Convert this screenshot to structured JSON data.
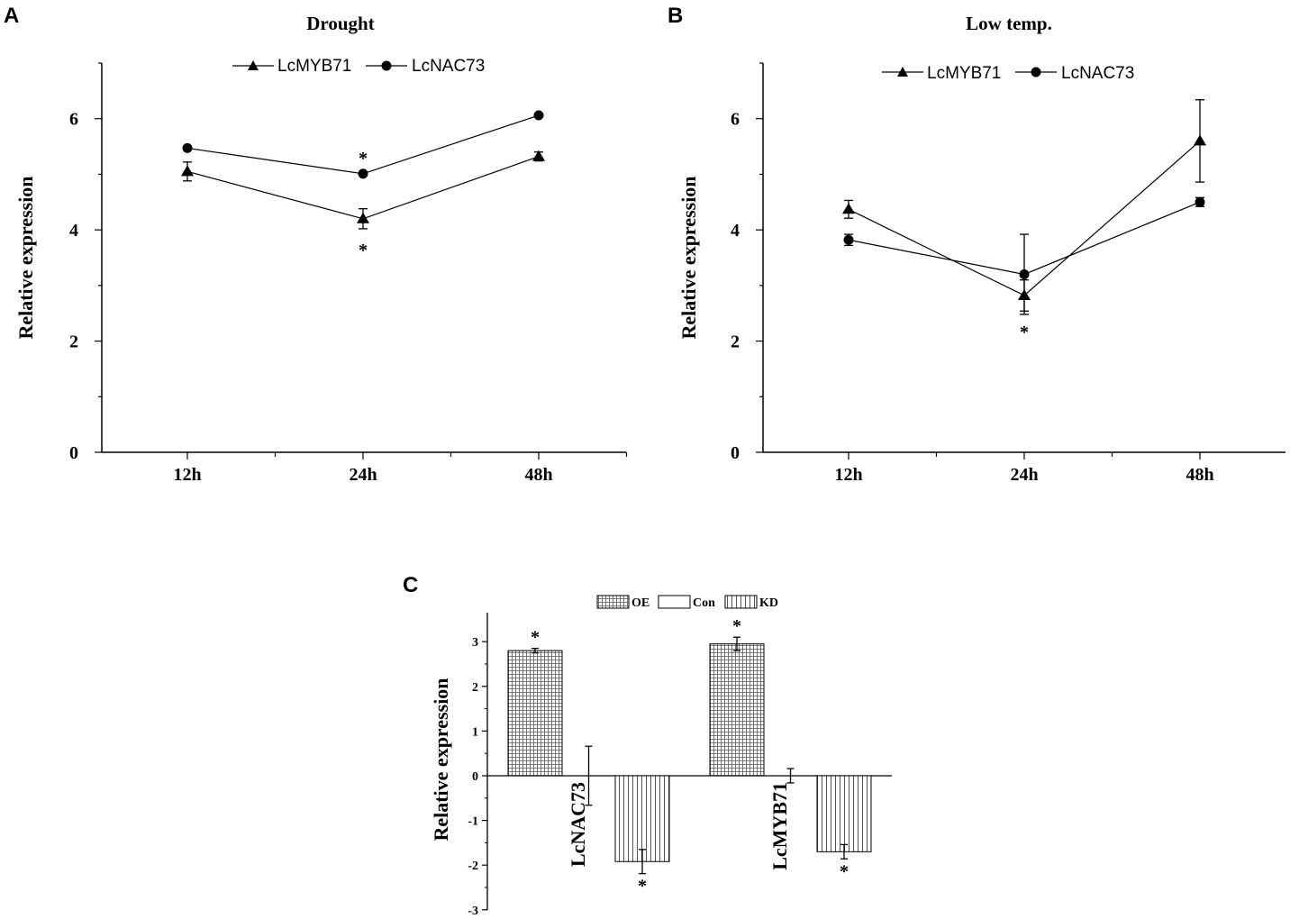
{
  "chart_data": [
    {
      "panel": "A",
      "type": "line",
      "title": "Drought",
      "xlabel": "",
      "ylabel": "Relative expression",
      "categories": [
        "12h",
        "24h",
        "48h"
      ],
      "ylim": [
        0,
        7
      ],
      "yticks": [
        0,
        2,
        4,
        6
      ],
      "series": [
        {
          "name": "LcMYB71",
          "marker": "triangle",
          "values": [
            5.05,
            4.2,
            5.32
          ],
          "errors": [
            0.17,
            0.18,
            0.08
          ],
          "stars": [
            false,
            true,
            false
          ]
        },
        {
          "name": "LcNAC73",
          "marker": "circle",
          "values": [
            5.47,
            5.01,
            6.06
          ],
          "errors": [
            0.03,
            0.03,
            0.03
          ],
          "stars": [
            false,
            true,
            false
          ]
        }
      ],
      "star_label": "*"
    },
    {
      "panel": "B",
      "type": "line",
      "title": "Low temp.",
      "xlabel": "",
      "ylabel": "Relative expression",
      "categories": [
        "12h",
        "24h",
        "48h"
      ],
      "ylim": [
        0,
        7
      ],
      "yticks": [
        0,
        2,
        4,
        6
      ],
      "series": [
        {
          "name": "LcMYB71",
          "marker": "triangle",
          "values": [
            4.37,
            2.82,
            5.6
          ],
          "errors": [
            0.16,
            0.28,
            0.74
          ],
          "stars": [
            false,
            true,
            false
          ]
        },
        {
          "name": "LcNAC73",
          "marker": "circle",
          "values": [
            3.82,
            3.2,
            4.5
          ],
          "errors": [
            0.1,
            0.72,
            0.08
          ],
          "stars": [
            false,
            false,
            false
          ]
        }
      ],
      "star_label": "*"
    },
    {
      "panel": "C",
      "type": "bar",
      "title": "",
      "xlabel": "",
      "ylabel": "Relative expression",
      "categories": [
        "LcNAC73",
        "LcMYB71"
      ],
      "ylim": [
        -3,
        3.7
      ],
      "yticks": [
        -3,
        -2,
        -1,
        0,
        1,
        2,
        3
      ],
      "series": [
        {
          "name": "OE",
          "pattern": "grid",
          "values": [
            2.8,
            2.95
          ],
          "errors": [
            0.05,
            0.15
          ],
          "stars": [
            true,
            true
          ]
        },
        {
          "name": "Con",
          "pattern": "none",
          "values": [
            0,
            0
          ],
          "errors": [
            0.66,
            0.16
          ],
          "stars": [
            false,
            false
          ]
        },
        {
          "name": "KD",
          "pattern": "vertical-lines",
          "values": [
            -1.92,
            -1.7
          ],
          "errors": [
            0.27,
            0.16
          ],
          "stars": [
            true,
            true
          ]
        }
      ],
      "star_label": "*"
    }
  ]
}
